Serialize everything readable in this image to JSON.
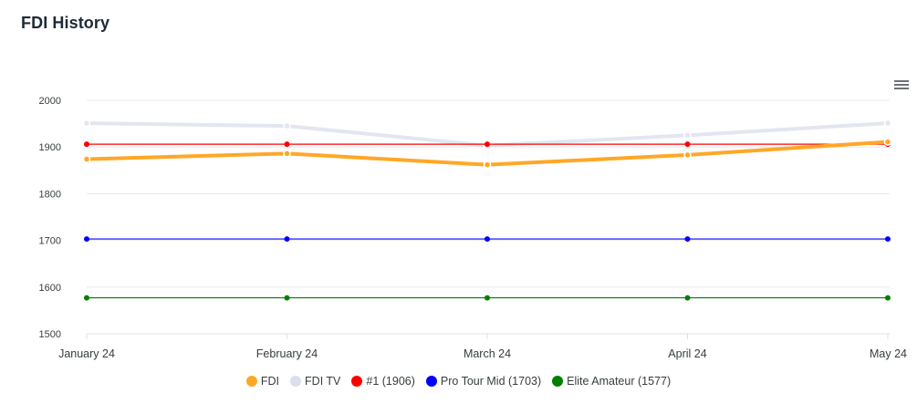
{
  "title": "FDI History",
  "menu_icon": "hamburger-menu-icon",
  "chart_data": {
    "type": "line",
    "categories": [
      "January 24",
      "February 24",
      "March 24",
      "April 24",
      "May 24"
    ],
    "ylim": [
      1500,
      2000
    ],
    "yticks": [
      2000,
      1900,
      1800,
      1700,
      1600,
      1500
    ],
    "grid": true,
    "legend_position": "bottom",
    "series": [
      {
        "name": "FDI",
        "color": "#ffa726",
        "values": [
          1874,
          1886,
          1862,
          1883,
          1911
        ]
      },
      {
        "name": "FDI TV",
        "color": "#e3e6f0",
        "values": [
          1951,
          1945,
          1903,
          1925,
          1951
        ]
      },
      {
        "name": "#1 (1906)",
        "color": "#ff0000",
        "values": [
          1906,
          1906,
          1906,
          1906,
          1906
        ]
      },
      {
        "name": "Pro Tour Mid (1703)",
        "color": "#0000ff",
        "values": [
          1703,
          1703,
          1703,
          1703,
          1703
        ]
      },
      {
        "name": "Elite Amateur (1577)",
        "color": "#008000",
        "values": [
          1577,
          1577,
          1577,
          1577,
          1577
        ]
      }
    ]
  }
}
